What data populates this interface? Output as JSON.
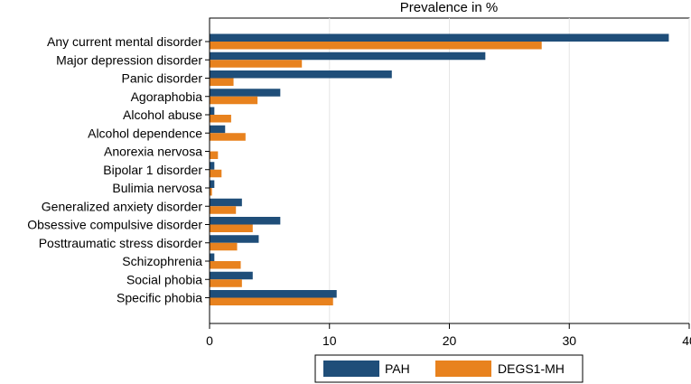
{
  "chart_data": {
    "type": "bar",
    "orientation": "horizontal",
    "title": "Prevalence in %",
    "xlabel": "Prevalence in %",
    "ylabel": "",
    "xlim": [
      0,
      40
    ],
    "xticks": [
      0,
      10,
      20,
      30,
      40
    ],
    "grid": true,
    "legend_position": "bottom",
    "categories": [
      "Any current mental disorder",
      "Major depression disorder",
      "Panic disorder",
      "Agoraphobia",
      "Alcohol abuse",
      "Alcohol dependence",
      "Anorexia nervosa",
      "Bipolar 1 disorder",
      "Bulimia nervosa",
      "Generalized anxiety disorder",
      "Obsessive compulsive disorder",
      "Posttraumatic stress disorder",
      "Schizophrenia",
      "Social phobia",
      "Specific phobia"
    ],
    "series": [
      {
        "name": "PAH",
        "color": "#1f4e79",
        "values": [
          38.3,
          23.0,
          15.2,
          5.9,
          0.4,
          1.3,
          0.0,
          0.4,
          0.4,
          2.7,
          5.9,
          4.1,
          0.4,
          3.6,
          10.6
        ]
      },
      {
        "name": "DEGS1-MH",
        "color": "#e8821e",
        "values": [
          27.7,
          7.7,
          2.0,
          4.0,
          1.8,
          3.0,
          0.7,
          1.0,
          0.2,
          2.2,
          3.6,
          2.3,
          2.6,
          2.7,
          10.3
        ]
      }
    ]
  }
}
